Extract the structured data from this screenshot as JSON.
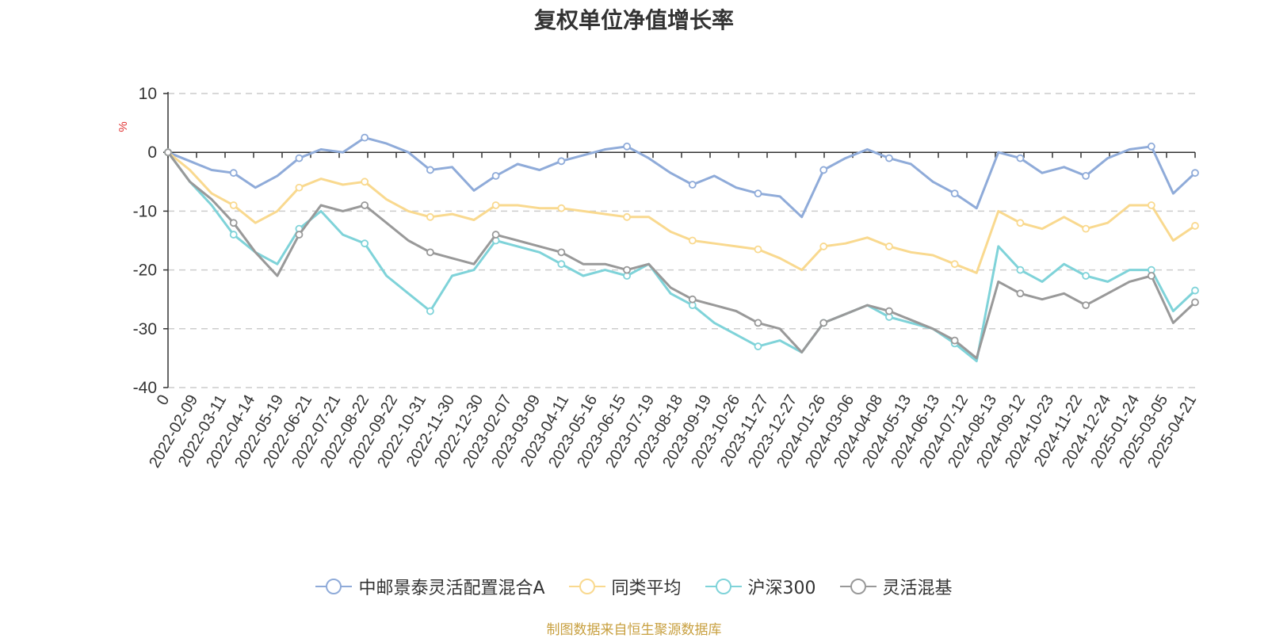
{
  "title": "复权单位净值增长率",
  "source": "制图数据来自恒生聚源数据库",
  "chart_data": {
    "type": "line",
    "ylabel": "%",
    "ylim": [
      -40,
      10
    ],
    "yticks": [
      10,
      0,
      -10,
      -20,
      -30,
      -40
    ],
    "xtick_labels": [
      "0",
      "2022-02-09",
      "2022-03-11",
      "2022-04-14",
      "2022-05-19",
      "2022-06-21",
      "2022-07-21",
      "2022-08-22",
      "2022-09-22",
      "2022-10-31",
      "2022-11-30",
      "2022-12-30",
      "2023-02-07",
      "2023-03-09",
      "2023-04-11",
      "2023-05-16",
      "2023-06-15",
      "2023-07-19",
      "2023-08-18",
      "2023-09-19",
      "2023-10-26",
      "2023-11-27",
      "2023-12-27",
      "2024-01-26",
      "2024-03-06",
      "2024-04-08",
      "2024-05-13",
      "2024-06-13",
      "2024-07-12",
      "2024-08-13",
      "2024-09-12",
      "2024-10-23",
      "2024-11-22",
      "2024-12-24",
      "2025-01-24",
      "2025-03-05",
      "2025-04-21"
    ],
    "grid": "horizontal dashed",
    "legend_position": "bottom",
    "series": [
      {
        "name": "中邮景泰灵活配置混合A",
        "color": "#8fabd9",
        "values": [
          0,
          -1.5,
          -3,
          -3.5,
          -6,
          -4,
          -1,
          0.5,
          0,
          2.5,
          1.5,
          0,
          -3,
          -2.5,
          -6.5,
          -4,
          -2,
          -3,
          -1.5,
          -0.5,
          0.5,
          1,
          -1,
          -3.5,
          -5.5,
          -4,
          -6,
          -7,
          -7.5,
          -11,
          -3,
          -1,
          0.5,
          -1,
          -2,
          -5,
          -7,
          -9.5,
          0,
          -1,
          -3.5,
          -2.5,
          -4,
          -1,
          0.5,
          1,
          -7,
          -3.5
        ]
      },
      {
        "name": "同类平均",
        "color": "#f9d98f",
        "values": [
          0,
          -3,
          -7,
          -9,
          -12,
          -10,
          -6,
          -4.5,
          -5.5,
          -5,
          -8,
          -10,
          -11,
          -10.5,
          -11.5,
          -9,
          -9,
          -9.5,
          -9.5,
          -10,
          -10.5,
          -11,
          -11,
          -13.5,
          -15,
          -15.5,
          -16,
          -16.5,
          -18,
          -20,
          -16,
          -15.5,
          -14.5,
          -16,
          -17,
          -17.5,
          -19,
          -20.5,
          -10,
          -12,
          -13,
          -11,
          -13,
          -12,
          -9,
          -9,
          -15,
          -12.5
        ]
      },
      {
        "name": "沪深300",
        "color": "#7fd3d9",
        "values": [
          0,
          -5,
          -9,
          -14,
          -17,
          -19,
          -13,
          -10,
          -14,
          -15.5,
          -21,
          -24,
          -27,
          -21,
          -20,
          -15,
          -16,
          -17,
          -19,
          -21,
          -20,
          -21,
          -19,
          -24,
          -26,
          -29,
          -31,
          -33,
          -32,
          -34,
          -29,
          -27.5,
          -26,
          -28,
          -29,
          -30,
          -32.5,
          -35.5,
          -16,
          -20,
          -22,
          -19,
          -21,
          -22,
          -20,
          -20,
          -27,
          -23.5
        ]
      },
      {
        "name": "灵活混基",
        "color": "#999999",
        "values": [
          0,
          -5,
          -8,
          -12,
          -17,
          -21,
          -14,
          -9,
          -10,
          -9,
          -12,
          -15,
          -17,
          -18,
          -19,
          -14,
          -15,
          -16,
          -17,
          -19,
          -19,
          -20,
          -19,
          -23,
          -25,
          -26,
          -27,
          -29,
          -30,
          -34,
          -29,
          -27.5,
          -26,
          -27,
          -28.5,
          -30,
          -32,
          -35,
          -22,
          -24,
          -25,
          -24,
          -26,
          -24,
          -22,
          -21,
          -29,
          -25.5
        ]
      }
    ]
  }
}
